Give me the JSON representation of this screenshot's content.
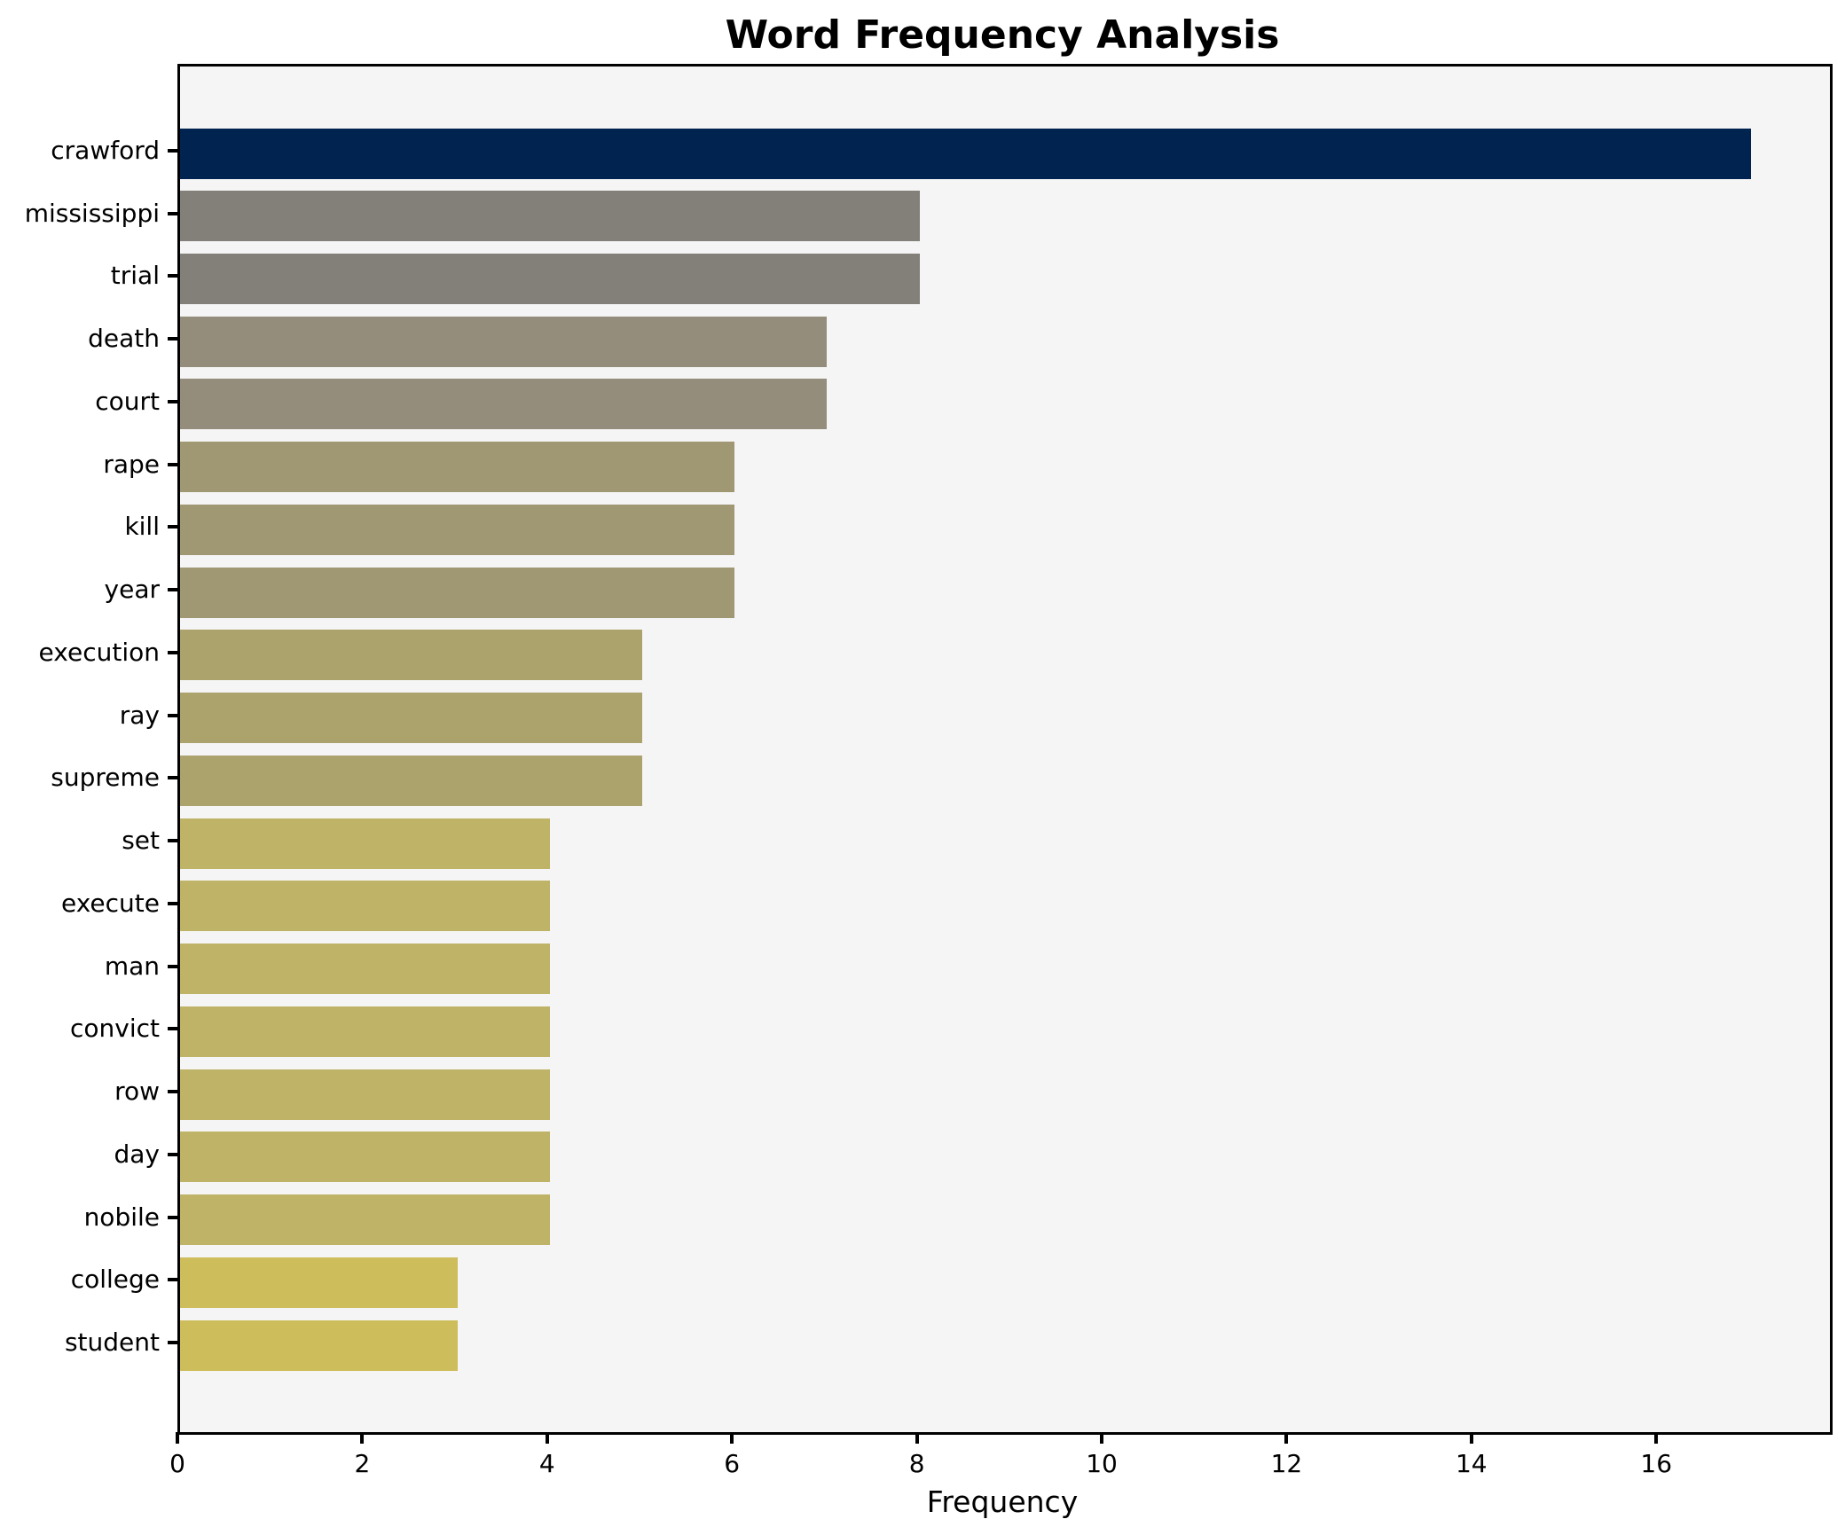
{
  "chart_data": {
    "type": "bar",
    "orientation": "horizontal",
    "title": "Word Frequency Analysis",
    "xlabel": "Frequency",
    "ylabel": "",
    "categories": [
      "crawford",
      "mississippi",
      "trial",
      "death",
      "court",
      "rape",
      "kill",
      "year",
      "execution",
      "ray",
      "supreme",
      "set",
      "execute",
      "man",
      "convict",
      "row",
      "day",
      "nobile",
      "college",
      "student"
    ],
    "values": [
      17,
      8,
      8,
      7,
      7,
      6,
      6,
      6,
      5,
      5,
      5,
      4,
      4,
      4,
      4,
      4,
      4,
      4,
      3,
      3
    ],
    "bar_colors": [
      "#002350",
      "#838079",
      "#838079",
      "#948d7b",
      "#948d7b",
      "#a09873",
      "#a09873",
      "#a09873",
      "#aca26b",
      "#aca26b",
      "#aca26b",
      "#beb366",
      "#beb366",
      "#beb366",
      "#beb366",
      "#beb366",
      "#beb366",
      "#beb366",
      "#cdbd5b",
      "#cdbd5b"
    ],
    "xlim": [
      0,
      17.85
    ],
    "xticks": [
      0,
      2,
      4,
      6,
      8,
      10,
      12,
      14,
      16
    ],
    "grid": false,
    "legend": null,
    "colormap": "cividis-reversed-by-value",
    "plot_background": "#f5f5f6",
    "figure_background": "#ffffff",
    "axis_color": "#000000",
    "title_color": "#000000",
    "tick_label_color": "#000000"
  }
}
